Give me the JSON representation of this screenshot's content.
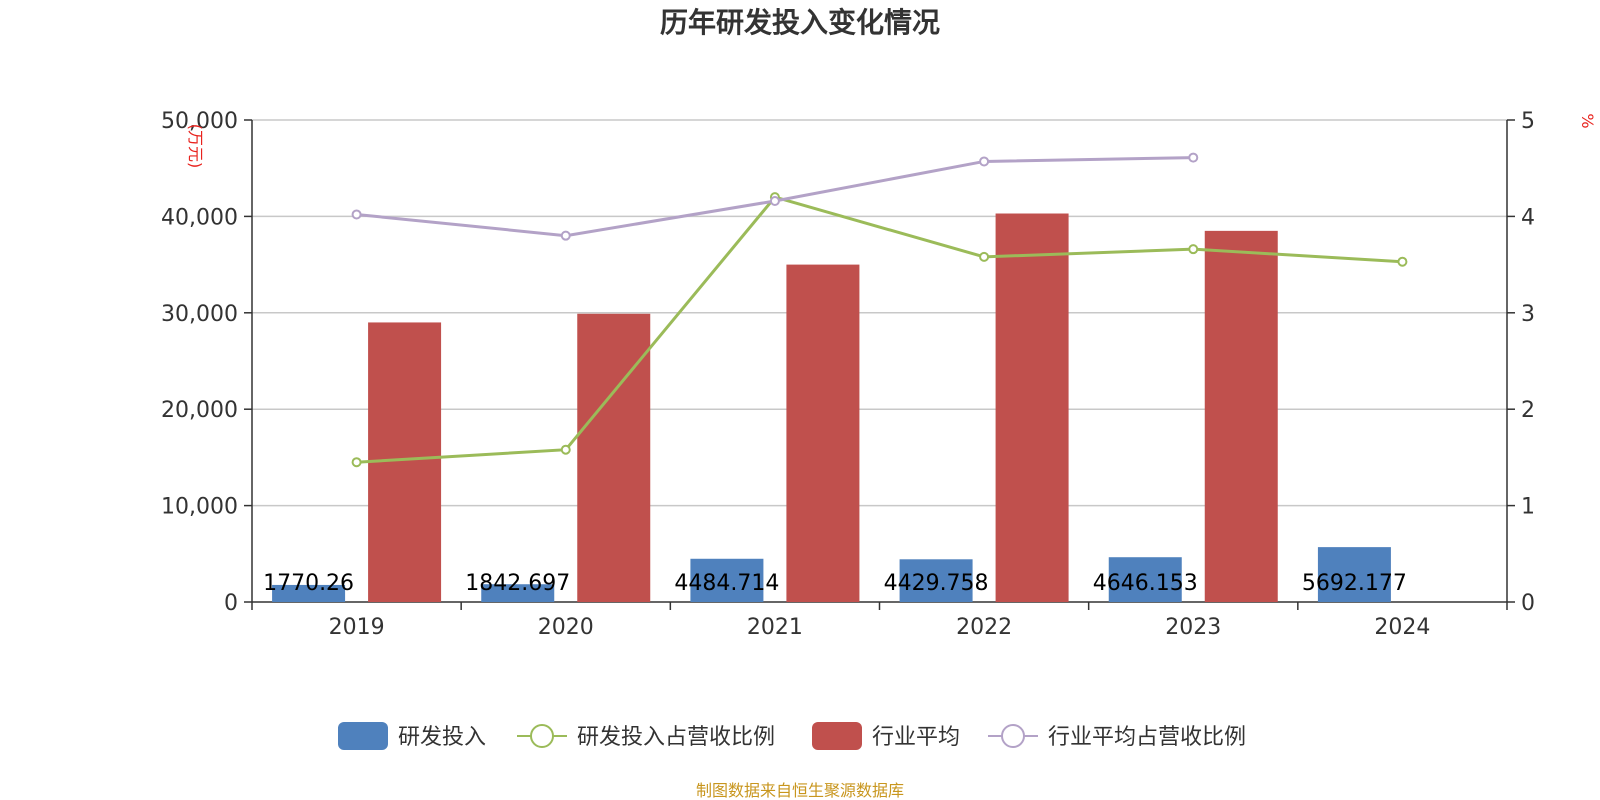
{
  "chart_data": {
    "type": "bar",
    "title": "历年研发投入变化情况",
    "categories": [
      "2019",
      "2020",
      "2021",
      "2022",
      "2023",
      "2024"
    ],
    "y_left": {
      "unit": "(万元)",
      "ylim": [
        0,
        50000
      ],
      "ticks": [
        "0",
        "10,000",
        "20,000",
        "30,000",
        "40,000",
        "50,000"
      ]
    },
    "y_right": {
      "unit": "%",
      "ylim": [
        0,
        5
      ],
      "ticks": [
        "0",
        "1",
        "2",
        "3",
        "4",
        "5"
      ]
    },
    "series": [
      {
        "name": "研发投入",
        "kind": "bar",
        "axis": "left",
        "color": "#4f81bd",
        "values": [
          1770.26,
          1842.697,
          4484.714,
          4429.758,
          4646.153,
          5692.177
        ],
        "labels": [
          "1770.26",
          "1842.697",
          "4484.714",
          "4429.758",
          "4646.153",
          "5692.177"
        ]
      },
      {
        "name": "研发投入占营收比例",
        "kind": "line",
        "axis": "right",
        "color": "#9bbb59",
        "values": [
          1.45,
          1.58,
          4.2,
          3.58,
          3.66,
          3.53
        ]
      },
      {
        "name": "行业平均",
        "kind": "bar",
        "axis": "left",
        "color": "#c0504d",
        "values": [
          29000,
          29900,
          35000,
          40300,
          38500,
          null
        ]
      },
      {
        "name": "行业平均占营收比例",
        "kind": "line",
        "axis": "right",
        "color": "#b3a2c7",
        "values": [
          4.02,
          3.8,
          4.16,
          4.57,
          4.61,
          null
        ]
      }
    ],
    "grid": true,
    "legend_position": "bottom"
  },
  "footer": {
    "source": "制图数据来自恒生聚源数据库"
  }
}
